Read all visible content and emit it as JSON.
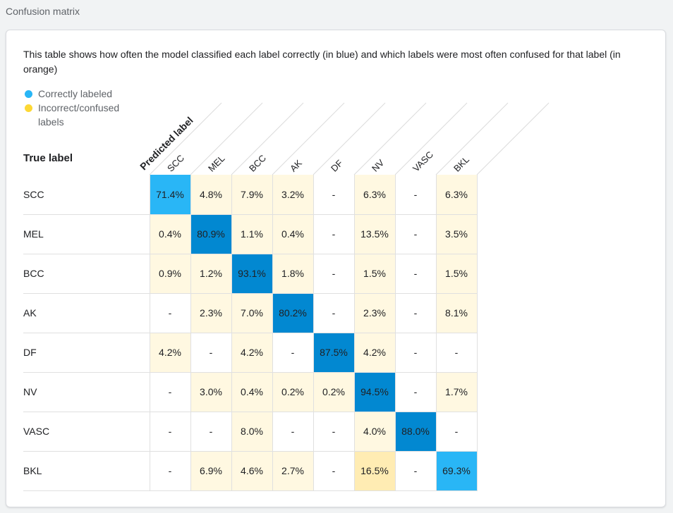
{
  "section_title": "Confusion matrix",
  "description": "This table shows how often the model classified each label correctly (in blue) and which labels were most often confused for that label (in orange)",
  "legend": {
    "correct": "Correctly labeled",
    "incorrect": "Incorrect/confused labels"
  },
  "colors": {
    "correct_strong": "#0288d1",
    "correct_light": "#29b6f6",
    "confused_light": "#fff8e1",
    "confused_strong": "#ffecb3"
  },
  "chart_data": {
    "type": "heatmap",
    "title": "Confusion matrix",
    "ylabel": "True label",
    "xlabel": "Predicted label",
    "rows": [
      "SCC",
      "MEL",
      "BCC",
      "AK",
      "DF",
      "NV",
      "VASC",
      "BKL"
    ],
    "cols": [
      "SCC",
      "MEL",
      "BCC",
      "AK",
      "DF",
      "NV",
      "VASC",
      "BKL"
    ],
    "values": [
      [
        "71.4%",
        "4.8%",
        "7.9%",
        "3.2%",
        "-",
        "6.3%",
        "-",
        "6.3%"
      ],
      [
        "0.4%",
        "80.9%",
        "1.1%",
        "0.4%",
        "-",
        "13.5%",
        "-",
        "3.5%"
      ],
      [
        "0.9%",
        "1.2%",
        "93.1%",
        "1.8%",
        "-",
        "1.5%",
        "-",
        "1.5%"
      ],
      [
        "-",
        "2.3%",
        "7.0%",
        "80.2%",
        "-",
        "2.3%",
        "-",
        "8.1%"
      ],
      [
        "4.2%",
        "-",
        "4.2%",
        "-",
        "87.5%",
        "4.2%",
        "-",
        "-"
      ],
      [
        "-",
        "3.0%",
        "0.4%",
        "0.2%",
        "0.2%",
        "94.5%",
        "-",
        "1.7%"
      ],
      [
        "-",
        "-",
        "8.0%",
        "-",
        "-",
        "4.0%",
        "88.0%",
        "-"
      ],
      [
        "-",
        "6.9%",
        "4.6%",
        "2.7%",
        "-",
        "16.5%",
        "-",
        "69.3%"
      ]
    ]
  }
}
